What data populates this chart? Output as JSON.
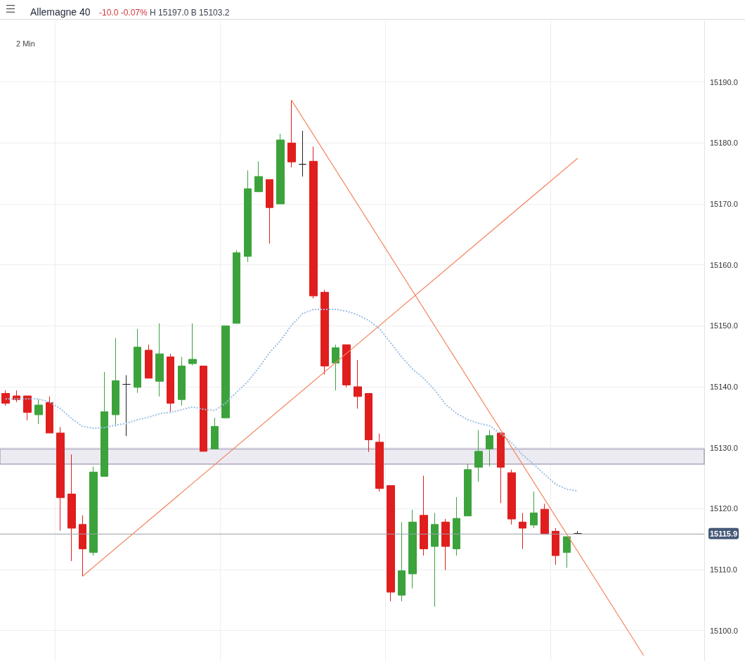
{
  "chart_data": {
    "type": "candlestick",
    "title": "Allemagne 40",
    "subtitle": "-10.0 -0.07% H 15197.0 B 15103.2",
    "annotations": [
      "2 Min"
    ],
    "categories": [
      null,
      null,
      null,
      null,
      null,
      null,
      null,
      null,
      null,
      null,
      null,
      null,
      null,
      null,
      null,
      null,
      null,
      null,
      null,
      null,
      null,
      null,
      null,
      null,
      null,
      null,
      null,
      null,
      null,
      null,
      null,
      null,
      null,
      null,
      null,
      null,
      null,
      null,
      null,
      null,
      null,
      null,
      null,
      null,
      null,
      null,
      null,
      null,
      null,
      null,
      null,
      null,
      null,
      null,
      null,
      null,
      null,
      null,
      null,
      null,
      null,
      null,
      null,
      null
    ],
    "series": [
      {
        "ohlc": [
          [
            15138.9,
            15139.4,
            15136.9,
            15137.3
          ],
          [
            15138.5,
            15139.4,
            15137.5,
            15137.9
          ],
          [
            15138.5,
            15138.5,
            15134.5,
            15135.8
          ],
          [
            15135.4,
            15137.9,
            15133.9,
            15137.0
          ],
          [
            15137.4,
            15138.4,
            15132.4,
            15132.4
          ],
          [
            15132.4,
            15133.4,
            15116.4,
            15121.8
          ],
          [
            15122.4,
            15128.9,
            15111.4,
            15116.8
          ],
          [
            15117.4,
            15118.9,
            15108.9,
            15113.4
          ],
          [
            15112.8,
            15126.9,
            15112.3,
            15126.0
          ],
          [
            15125.3,
            15142.4,
            15125.3,
            15135.9
          ],
          [
            15135.4,
            15148.0,
            15133.5,
            15141.0
          ],
          [
            15140.4,
            15141.9,
            15131.9,
            15140.4
          ],
          [
            15139.9,
            15149.5,
            15139.0,
            15146.5
          ],
          [
            15146.0,
            15146.9,
            15141.4,
            15141.4
          ],
          [
            15140.9,
            15150.4,
            15138.4,
            15145.4
          ],
          [
            15144.9,
            15145.4,
            15135.9,
            15137.3
          ],
          [
            15137.9,
            15144.9,
            15136.9,
            15143.4
          ],
          [
            15143.8,
            15150.4,
            15143.5,
            15144.5
          ],
          [
            15143.4,
            15143.4,
            15129.4,
            15129.4
          ],
          [
            15129.8,
            15134.9,
            15129.8,
            15133.5
          ],
          [
            15134.9,
            15150.0,
            15134.9,
            15150.0
          ],
          [
            15150.4,
            15162.4,
            15150.4,
            15162.0
          ],
          [
            15161.4,
            15175.5,
            15160.5,
            15172.5
          ],
          [
            15172.0,
            15177.0,
            15172.0,
            15174.5
          ],
          [
            15174.0,
            15174.0,
            15163.5,
            15169.4
          ],
          [
            15170.0,
            15181.5,
            15170.0,
            15180.5
          ],
          [
            15180.0,
            15187.0,
            15176.0,
            15176.9
          ],
          [
            15176.5,
            15182.0,
            15174.5,
            15176.5
          ],
          [
            15177.0,
            15179.4,
            15154.5,
            15154.9
          ],
          [
            15155.5,
            15155.9,
            15142.0,
            15143.4
          ],
          [
            15143.9,
            15146.9,
            15139.4,
            15146.4
          ],
          [
            15146.9,
            15146.9,
            15139.9,
            15140.3
          ],
          [
            15140.0,
            15144.4,
            15136.4,
            15138.4
          ],
          [
            15138.9,
            15138.9,
            15129.3,
            15131.3
          ],
          [
            15130.9,
            15132.3,
            15122.8,
            15123.3
          ],
          [
            15123.8,
            15123.8,
            15104.8,
            15106.3
          ],
          [
            15105.8,
            15117.8,
            15104.8,
            15109.8
          ],
          [
            15109.3,
            15119.8,
            15106.9,
            15117.8
          ],
          [
            15118.9,
            15125.4,
            15112.3,
            15113.4
          ],
          [
            15113.8,
            15119.3,
            15103.9,
            15117.4
          ],
          [
            15117.8,
            15118.3,
            15109.9,
            15113.8
          ],
          [
            15113.4,
            15121.9,
            15112.3,
            15118.4
          ],
          [
            15118.8,
            15127.3,
            15118.8,
            15126.4
          ],
          [
            15126.8,
            15132.9,
            15124.4,
            15129.4
          ],
          [
            15129.8,
            15132.9,
            15126.9,
            15132.0
          ],
          [
            15132.4,
            15132.4,
            15120.9,
            15126.8
          ],
          [
            15125.9,
            15126.4,
            15117.4,
            15118.3
          ],
          [
            15117.8,
            15119.3,
            15113.4,
            15116.8
          ],
          [
            15117.3,
            15122.8,
            15116.8,
            15119.3
          ],
          [
            15119.9,
            15120.8,
            15115.8,
            15115.8
          ],
          [
            15116.3,
            15116.8,
            15110.8,
            15112.3
          ],
          [
            15112.8,
            15115.4,
            15110.3,
            15115.4
          ],
          [
            15115.9,
            15116.3,
            15115.9,
            15115.9
          ],
          null,
          null,
          null,
          null,
          null,
          null,
          null,
          null,
          null,
          null,
          null
        ],
        "colors": [
          "#e01e1e",
          "#e01e1e",
          "#e01e1e",
          "#3ca33c",
          "#e01e1e",
          "#e01e1e",
          "#e01e1e",
          "#e01e1e",
          "#3ca33c",
          "#3ca33c",
          "#3ca33c",
          "#222222",
          "#3ca33c",
          "#e01e1e",
          "#3ca33c",
          "#e01e1e",
          "#3ca33c",
          "#3ca33c",
          "#e01e1e",
          "#3ca33c",
          "#3ca33c",
          "#3ca33c",
          "#3ca33c",
          "#3ca33c",
          "#e01e1e",
          "#3ca33c",
          "#e01e1e",
          "#222222",
          "#e01e1e",
          "#e01e1e",
          "#3ca33c",
          "#e01e1e",
          "#e01e1e",
          "#e01e1e",
          "#e01e1e",
          "#e01e1e",
          "#3ca33c",
          "#3ca33c",
          "#e01e1e",
          "#3ca33c",
          "#e01e1e",
          "#3ca33c",
          "#3ca33c",
          "#3ca33c",
          "#3ca33c",
          "#e01e1e",
          "#e01e1e",
          "#e01e1e",
          "#3ca33c",
          "#e01e1e",
          "#e01e1e",
          "#3ca33c",
          "#222222",
          null,
          null,
          null,
          null,
          null,
          null,
          null,
          null,
          null,
          null,
          null
        ]
      },
      {
        "type": "line",
        "color": "#9bbfe3",
        "line_style": "dotted",
        "values": [
          15138.0,
          15138.0,
          15138.0,
          15138.0,
          15137.5,
          15136.4,
          15134.8,
          15133.5,
          15133.2,
          15133.3,
          15133.7,
          15134.0,
          15134.6,
          15135.0,
          15135.6,
          15135.8,
          15136.2,
          15136.7,
          15136.3,
          15136.1,
          15137.3,
          15139.1,
          15140.8,
          15143.1,
          15145.6,
          15147.6,
          15150.1,
          15152.0,
          15152.7,
          15152.7,
          15152.7,
          15152.4,
          15151.8,
          15150.9,
          15149.5,
          15147.2,
          15144.9,
          15142.9,
          15141.4,
          15139.5,
          15137.1,
          15135.6,
          15134.6,
          15134.0,
          15133.6,
          15132.3,
          15130.8,
          15128.8,
          15127.3,
          15125.6,
          15124.0,
          15123.2,
          15122.9,
          null,
          null,
          null,
          null,
          null,
          null,
          null,
          null,
          null,
          null,
          null
        ]
      },
      {
        "type": "line",
        "color": "#f4845f",
        "line_style": "solid",
        "values": [
          null,
          null,
          null,
          null,
          null,
          null,
          null,
          15108.9,
          null,
          null,
          null,
          null,
          null,
          null,
          null,
          null,
          null,
          null,
          null,
          null,
          null,
          null,
          null,
          null,
          null,
          null,
          null,
          null,
          null,
          null,
          null,
          null,
          null,
          null,
          null,
          null,
          null,
          null,
          null,
          null,
          null,
          null,
          null,
          null,
          null,
          null,
          null,
          null,
          null,
          null,
          null,
          null,
          15177.5,
          null,
          null,
          null,
          null,
          null,
          null,
          null,
          null,
          null,
          null,
          null
        ]
      },
      {
        "type": "line",
        "color": "#f4845f",
        "line_style": "solid",
        "values": [
          null,
          null,
          null,
          null,
          null,
          null,
          null,
          null,
          null,
          null,
          null,
          null,
          null,
          null,
          null,
          null,
          null,
          null,
          null,
          null,
          null,
          null,
          null,
          null,
          null,
          null,
          15187.0,
          null,
          null,
          null,
          null,
          null,
          null,
          null,
          null,
          null,
          null,
          null,
          null,
          null,
          null,
          null,
          null,
          null,
          null,
          null,
          null,
          null,
          null,
          null,
          null,
          null,
          null,
          null,
          null,
          null,
          null,
          null,
          15095.9,
          null,
          null,
          null,
          null,
          null
        ]
      }
    ],
    "ylim": [
      15095,
      15200
    ],
    "yticks": [
      {
        "value": 15100,
        "label": "15100.0"
      },
      {
        "value": 15110,
        "label": "15110.0"
      },
      {
        "value": 15120,
        "label": "15120.0"
      },
      {
        "value": 15130,
        "label": "15130.0"
      },
      {
        "value": 15140,
        "label": "15140.0"
      },
      {
        "value": 15150,
        "label": "15150.0"
      },
      {
        "value": 15160,
        "label": "15160.0"
      },
      {
        "value": 15170,
        "label": "15170.0"
      },
      {
        "value": 15180,
        "label": "15180.0"
      },
      {
        "value": 15190,
        "label": "15190.0"
      }
    ],
    "tick_labels": "y",
    "ref_lines": [
      {
        "axis": "y",
        "value": 15115.9,
        "label": "15115.9",
        "color": "#9aa0a8"
      }
    ],
    "bands": [
      {
        "axis": "y",
        "from": 15127.3,
        "to": 15129.8,
        "color": "#e9e6ef"
      }
    ],
    "grid": true,
    "marker": "none"
  }
}
